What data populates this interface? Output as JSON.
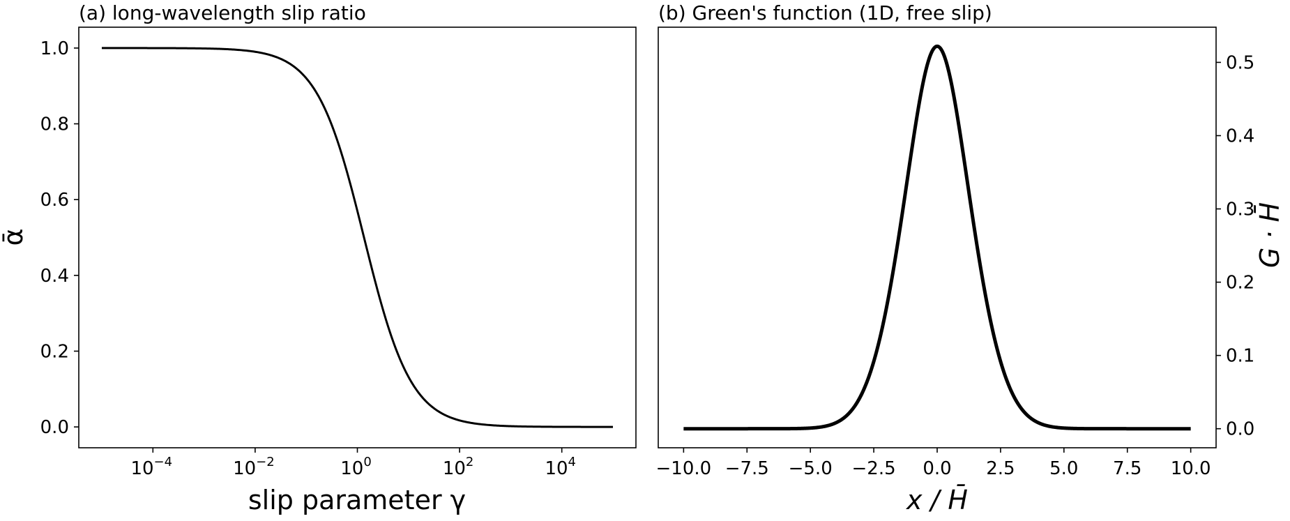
{
  "chart_data": [
    {
      "type": "line",
      "panel": "a",
      "title": "(a) long-wavelength slip ratio",
      "xlabel": "slip parameter γ",
      "ylabel": "ᾱ",
      "xscale": "log",
      "xlim_log10": [
        -5.45,
        5.45
      ],
      "ylim": [
        -0.055,
        1.055
      ],
      "xticks": [
        {
          "log10": -4,
          "label_base": "10",
          "label_exp": "−4"
        },
        {
          "log10": -2,
          "label_base": "10",
          "label_exp": "−2"
        },
        {
          "log10": 0,
          "label_base": "10",
          "label_exp": "0"
        },
        {
          "log10": 2,
          "label_base": "10",
          "label_exp": "2"
        },
        {
          "log10": 4,
          "label_base": "10",
          "label_exp": "4"
        }
      ],
      "yticks": [
        {
          "value": 0.0,
          "label": "0.0"
        },
        {
          "value": 0.2,
          "label": "0.2"
        },
        {
          "value": 0.4,
          "label": "0.4"
        },
        {
          "value": 0.6,
          "label": "0.6"
        },
        {
          "value": 0.8,
          "label": "0.8"
        },
        {
          "value": 1.0,
          "label": "1.0"
        }
      ],
      "grid": false,
      "line_width": 3,
      "color": "#000000",
      "x_log10": [
        -5,
        -4,
        -3,
        -2,
        -1.5,
        -1,
        -0.75,
        -0.5,
        -0.25,
        0,
        0.25,
        0.5,
        0.75,
        1,
        1.25,
        1.5,
        2,
        2.5,
        3,
        4,
        5
      ],
      "y": [
        1.0,
        0.9998,
        0.998,
        0.98,
        0.955,
        0.895,
        0.835,
        0.74,
        0.63,
        0.555,
        0.44,
        0.32,
        0.215,
        0.135,
        0.08,
        0.045,
        0.014,
        0.004,
        0.0014,
        0.0001,
        0.0
      ]
    },
    {
      "type": "line",
      "panel": "b",
      "title": "(b) Green's function (1D, free slip)",
      "xlabel": "x / H̄",
      "ylabel": "G · H̄",
      "ylabel_side": "right",
      "xlim": [
        -11.0,
        11.0
      ],
      "ylim": [
        -0.026,
        0.548
      ],
      "xticks": [
        {
          "value": -10.0,
          "label": "−10.0"
        },
        {
          "value": -7.5,
          "label": "−7.5"
        },
        {
          "value": -5.0,
          "label": "−5.0"
        },
        {
          "value": -2.5,
          "label": "−2.5"
        },
        {
          "value": 0.0,
          "label": "0.0"
        },
        {
          "value": 2.5,
          "label": "2.5"
        },
        {
          "value": 5.0,
          "label": "5.0"
        },
        {
          "value": 7.5,
          "label": "7.5"
        },
        {
          "value": 10.0,
          "label": "10.0"
        }
      ],
      "yticks": [
        {
          "value": 0.0,
          "label": "0.0"
        },
        {
          "value": 0.1,
          "label": "0.1"
        },
        {
          "value": 0.2,
          "label": "0.2"
        },
        {
          "value": 0.3,
          "label": "0.3"
        },
        {
          "value": 0.4,
          "label": "0.4"
        },
        {
          "value": 0.5,
          "label": "0.5"
        }
      ],
      "grid": false,
      "line_width": 5,
      "color": "#000000",
      "x": [
        -10,
        -5,
        -4,
        -3.5,
        -3,
        -2.5,
        -2,
        -1.5,
        -1,
        -0.5,
        0,
        0.5,
        1,
        1.5,
        2,
        2.5,
        3,
        3.5,
        4,
        5,
        10
      ],
      "y": [
        0.0,
        0.001,
        0.006,
        0.014,
        0.03,
        0.06,
        0.12,
        0.215,
        0.34,
        0.46,
        0.522,
        0.46,
        0.34,
        0.215,
        0.12,
        0.06,
        0.03,
        0.014,
        0.006,
        0.001,
        0.0
      ]
    }
  ]
}
